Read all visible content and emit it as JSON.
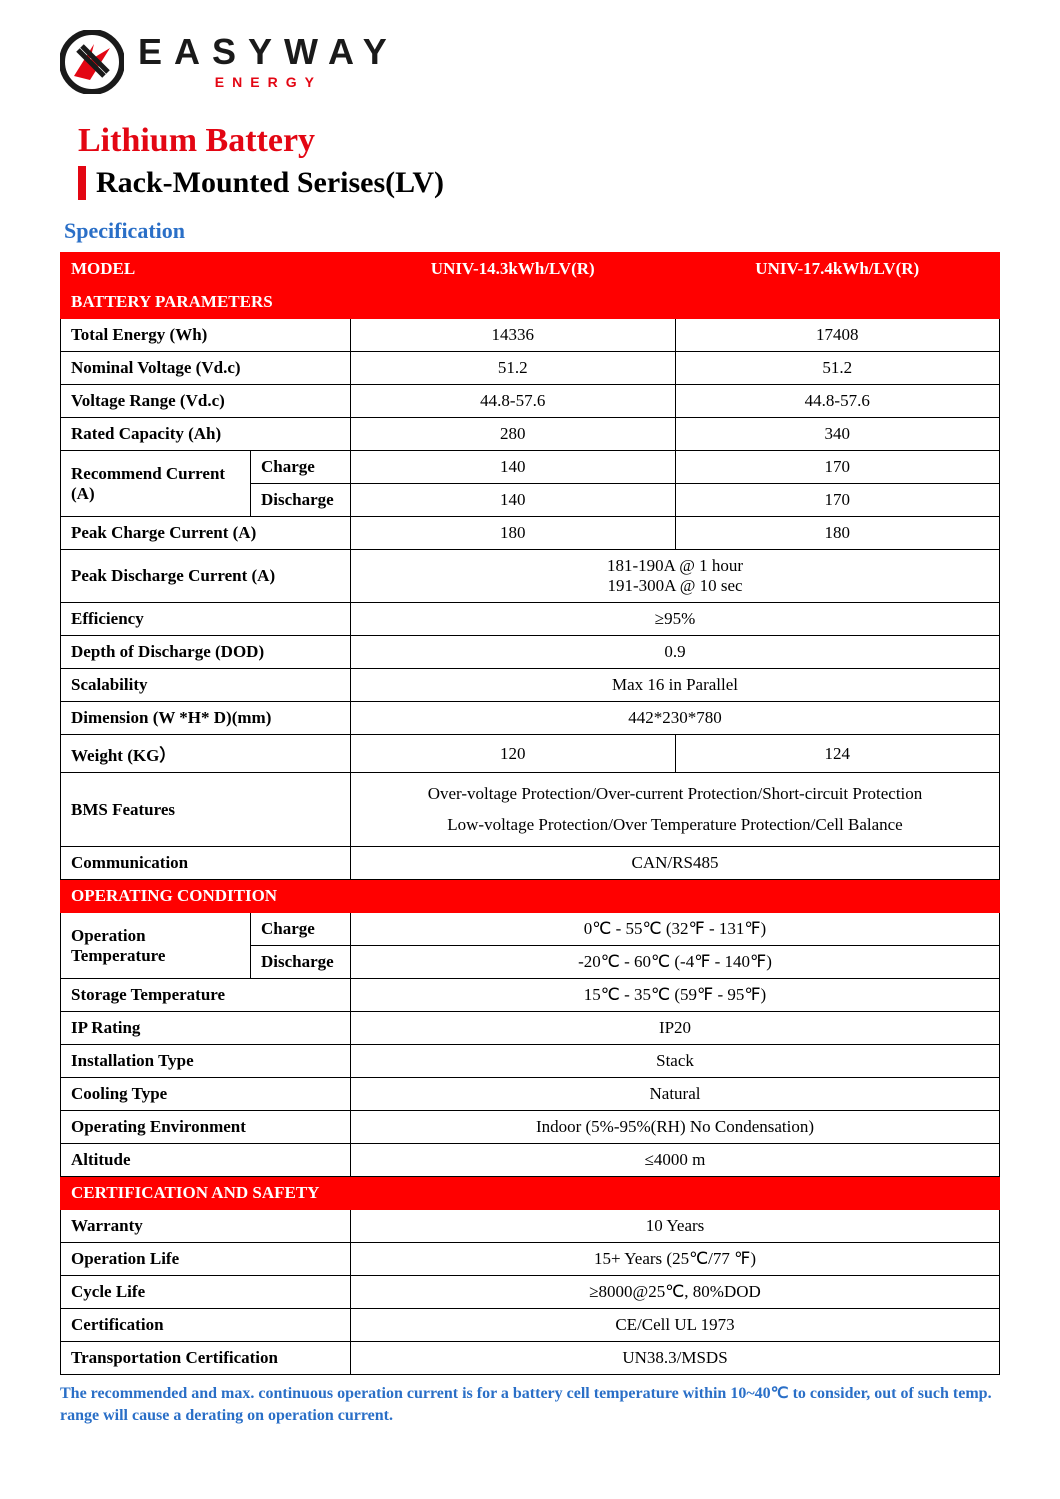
{
  "brand": {
    "name": "EASYWAY",
    "sub": "ENERGY"
  },
  "title": "Lithium Battery",
  "subtitle": "Rack-Mounted Serises(LV)",
  "section_label": "Specification",
  "colors": {
    "accent_red": "#e30613",
    "header_red": "#ff0000",
    "link_blue": "#2a6fc7",
    "text": "#000000",
    "bg": "#ffffff"
  },
  "table": {
    "model_header": "MODEL",
    "models": [
      "UNIV-14.3kWh/LV(R)",
      "UNIV-17.4kWh/LV(R)"
    ],
    "sections": [
      {
        "header": "BATTERY PARAMETERS",
        "rows": [
          {
            "label": "Total Energy (Wh)",
            "vals": [
              "14336",
              "17408"
            ]
          },
          {
            "label": "Nominal Voltage (Vd.c)",
            "vals": [
              "51.2",
              "51.2"
            ]
          },
          {
            "label": "Voltage Range (Vd.c)",
            "vals": [
              "44.8-57.6",
              "44.8-57.6"
            ]
          },
          {
            "label": "Rated Capacity (Ah)",
            "vals": [
              "280",
              "340"
            ]
          },
          {
            "label": "Recommend Current (A)",
            "subrows": [
              {
                "sub": "Charge",
                "vals": [
                  "140",
                  "170"
                ]
              },
              {
                "sub": "Discharge",
                "vals": [
                  "140",
                  "170"
                ]
              }
            ]
          },
          {
            "label": "Peak Charge Current (A)",
            "vals": [
              "180",
              "180"
            ]
          },
          {
            "label": "Peak Discharge Current (A)",
            "merged": "181-190A @ 1 hour\n191-300A @ 10 sec"
          },
          {
            "label": "Efficiency",
            "merged": "≥95%"
          },
          {
            "label": "Depth of Discharge (DOD)",
            "merged": "0.9"
          },
          {
            "label": "Scalability",
            "merged": "Max 16 in Parallel"
          },
          {
            "label": "Dimension (W *H* D)(mm)",
            "merged": "442*230*780"
          },
          {
            "label": "Weight (KG）",
            "vals": [
              "120",
              "124"
            ]
          },
          {
            "label": "BMS Features",
            "merged_lines": [
              "Over-voltage Protection/Over-current Protection/Short-circuit Protection",
              "Low-voltage Protection/Over Temperature Protection/Cell Balance"
            ]
          },
          {
            "label": "Communication",
            "merged": "CAN/RS485"
          }
        ]
      },
      {
        "header": "OPERATING CONDITION",
        "rows": [
          {
            "label_lines": [
              "Operation",
              "Temperature"
            ],
            "subrows": [
              {
                "sub": "Charge",
                "merged": "0℃ - 55℃ (32℉ - 131℉)"
              },
              {
                "sub": "Discharge",
                "merged": "-20℃ - 60℃ (-4℉ - 140℉)"
              }
            ]
          },
          {
            "label": "Storage Temperature",
            "merged": "15℃ - 35℃ (59℉ - 95℉)"
          },
          {
            "label": "IP Rating",
            "merged": "IP20"
          },
          {
            "label": "Installation Type",
            "merged": "Stack"
          },
          {
            "label": "Cooling Type",
            "merged": "Natural"
          },
          {
            "label": "Operating Environment",
            "merged": "Indoor (5%-95%(RH) No Condensation)"
          },
          {
            "label": "Altitude",
            "merged": "≤4000 m"
          }
        ]
      },
      {
        "header": "CERTIFICATION AND SAFETY",
        "rows": [
          {
            "label": "Warranty",
            "merged": "10 Years"
          },
          {
            "label": "Operation Life",
            "merged": "15+ Years  (25℃/77 ℉)"
          },
          {
            "label": "Cycle Life",
            "merged": "≥8000@25℃, 80%DOD"
          },
          {
            "label": "Certification",
            "merged": "CE/Cell UL 1973"
          },
          {
            "label": "Transportation Certification",
            "merged": "UN38.3/MSDS"
          }
        ]
      }
    ]
  },
  "footnote": "The recommended and max. continuous operation current is for a battery cell temperature within 10~40℃ to consider, out of such temp. range will cause a derating on operation current."
}
